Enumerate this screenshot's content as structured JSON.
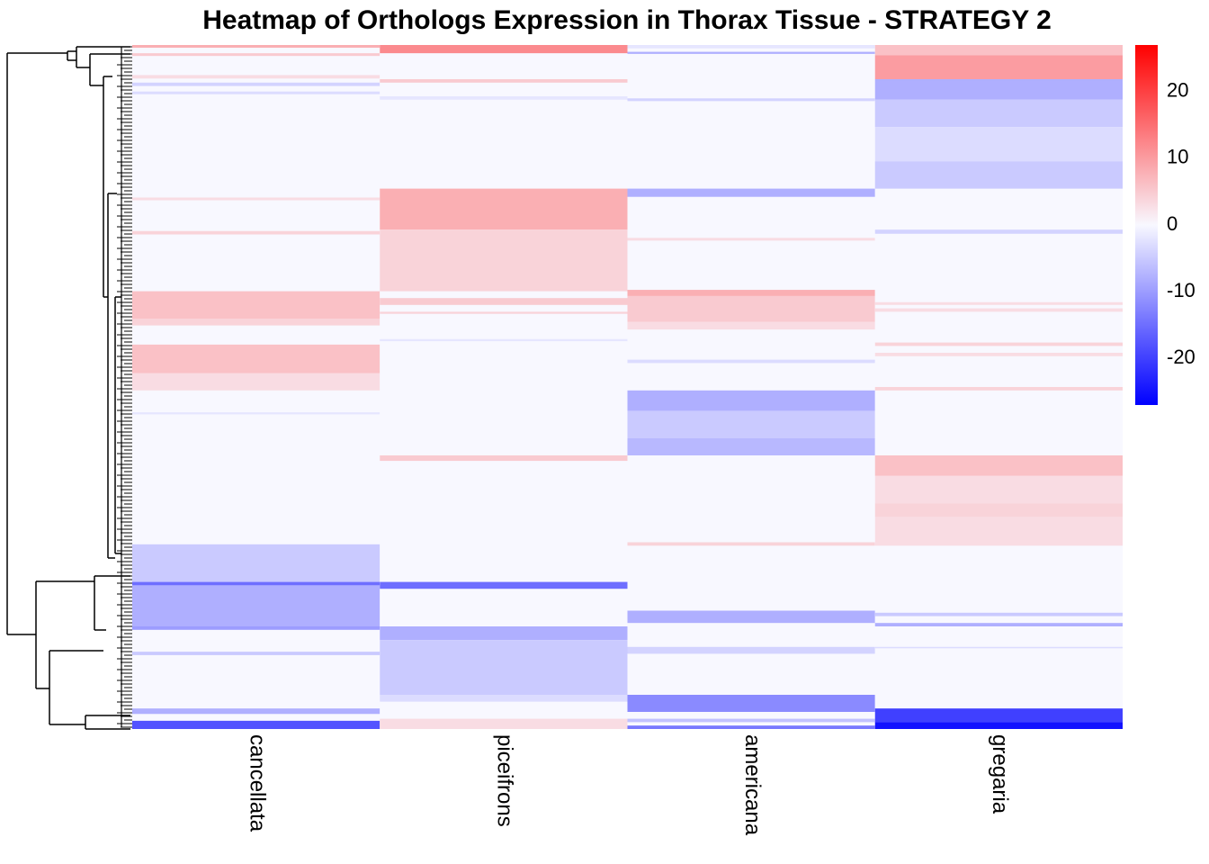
{
  "chart_data": {
    "type": "heatmap",
    "title": "Heatmap of Orthologs Expression in Thorax Tissue - STRATEGY 2",
    "columns": [
      "cancellata",
      "piceifrons",
      "americana",
      "gregaria"
    ],
    "color_scale": {
      "min": -27,
      "max": 27,
      "low_color": "#0000ff",
      "mid_color": "#f8f8ff",
      "high_color": "#ff0000",
      "ticks": [
        20,
        10,
        0,
        -10,
        -20
      ]
    },
    "row_blocks_note": "values approximated; rows grouped as fractional spans of clustered row order",
    "row_blocks": {
      "cancellata": [
        {
          "from": 0.0,
          "to": 0.004,
          "value": 8
        },
        {
          "from": 0.012,
          "to": 0.016,
          "value": 5
        },
        {
          "from": 0.044,
          "to": 0.049,
          "value": 3
        },
        {
          "from": 0.055,
          "to": 0.06,
          "value": -4
        },
        {
          "from": 0.068,
          "to": 0.072,
          "value": -3
        },
        {
          "from": 0.223,
          "to": 0.227,
          "value": 3
        },
        {
          "from": 0.272,
          "to": 0.277,
          "value": 4
        },
        {
          "from": 0.36,
          "to": 0.4,
          "value": 6
        },
        {
          "from": 0.4,
          "to": 0.41,
          "value": 4
        },
        {
          "from": 0.438,
          "to": 0.48,
          "value": 6
        },
        {
          "from": 0.48,
          "to": 0.505,
          "value": 3
        },
        {
          "from": 0.537,
          "to": 0.54,
          "value": -2
        },
        {
          "from": 0.73,
          "to": 0.785,
          "value": -5
        },
        {
          "from": 0.785,
          "to": 0.79,
          "value": -15
        },
        {
          "from": 0.79,
          "to": 0.85,
          "value": -8
        },
        {
          "from": 0.85,
          "to": 0.855,
          "value": -10
        },
        {
          "from": 0.887,
          "to": 0.892,
          "value": -5
        },
        {
          "from": 0.97,
          "to": 0.978,
          "value": -8
        },
        {
          "from": 0.988,
          "to": 1.0,
          "value": -18
        }
      ],
      "piceifrons": [
        {
          "from": 0.0,
          "to": 0.012,
          "value": 12
        },
        {
          "from": 0.05,
          "to": 0.055,
          "value": 5
        },
        {
          "from": 0.075,
          "to": 0.08,
          "value": -2
        },
        {
          "from": 0.21,
          "to": 0.27,
          "value": 8
        },
        {
          "from": 0.27,
          "to": 0.36,
          "value": 4
        },
        {
          "from": 0.37,
          "to": 0.38,
          "value": 5
        },
        {
          "from": 0.39,
          "to": 0.393,
          "value": 4
        },
        {
          "from": 0.43,
          "to": 0.433,
          "value": -2
        },
        {
          "from": 0.6,
          "to": 0.608,
          "value": 5
        },
        {
          "from": 0.785,
          "to": 0.795,
          "value": -15
        },
        {
          "from": 0.85,
          "to": 0.87,
          "value": -8
        },
        {
          "from": 0.87,
          "to": 0.95,
          "value": -5
        },
        {
          "from": 0.95,
          "to": 0.96,
          "value": -3
        },
        {
          "from": 0.985,
          "to": 1.0,
          "value": 3
        }
      ],
      "americana": [
        {
          "from": 0.0,
          "to": 0.005,
          "value": -2
        },
        {
          "from": 0.01,
          "to": 0.013,
          "value": -8
        },
        {
          "from": 0.078,
          "to": 0.082,
          "value": -4
        },
        {
          "from": 0.21,
          "to": 0.222,
          "value": -8
        },
        {
          "from": 0.282,
          "to": 0.286,
          "value": 3
        },
        {
          "from": 0.358,
          "to": 0.367,
          "value": 8
        },
        {
          "from": 0.367,
          "to": 0.405,
          "value": 5
        },
        {
          "from": 0.405,
          "to": 0.416,
          "value": 3
        },
        {
          "from": 0.46,
          "to": 0.465,
          "value": -3
        },
        {
          "from": 0.505,
          "to": 0.535,
          "value": -8
        },
        {
          "from": 0.535,
          "to": 0.575,
          "value": -5
        },
        {
          "from": 0.575,
          "to": 0.6,
          "value": -7
        },
        {
          "from": 0.727,
          "to": 0.732,
          "value": 4
        },
        {
          "from": 0.827,
          "to": 0.845,
          "value": -8
        },
        {
          "from": 0.88,
          "to": 0.89,
          "value": -4
        },
        {
          "from": 0.95,
          "to": 0.975,
          "value": -12
        },
        {
          "from": 0.985,
          "to": 0.99,
          "value": -6
        },
        {
          "from": 0.995,
          "to": 1.0,
          "value": -14
        }
      ],
      "gregaria": [
        {
          "from": 0.0,
          "to": 0.015,
          "value": 6
        },
        {
          "from": 0.015,
          "to": 0.05,
          "value": 10
        },
        {
          "from": 0.05,
          "to": 0.08,
          "value": -8
        },
        {
          "from": 0.08,
          "to": 0.12,
          "value": -5
        },
        {
          "from": 0.12,
          "to": 0.17,
          "value": -3
        },
        {
          "from": 0.17,
          "to": 0.21,
          "value": -5
        },
        {
          "from": 0.27,
          "to": 0.276,
          "value": -4
        },
        {
          "from": 0.376,
          "to": 0.38,
          "value": 3
        },
        {
          "from": 0.385,
          "to": 0.39,
          "value": 3
        },
        {
          "from": 0.435,
          "to": 0.44,
          "value": 4
        },
        {
          "from": 0.45,
          "to": 0.455,
          "value": 3
        },
        {
          "from": 0.5,
          "to": 0.505,
          "value": 4
        },
        {
          "from": 0.6,
          "to": 0.63,
          "value": 6
        },
        {
          "from": 0.63,
          "to": 0.67,
          "value": 3
        },
        {
          "from": 0.67,
          "to": 0.69,
          "value": 4
        },
        {
          "from": 0.69,
          "to": 0.732,
          "value": 3
        },
        {
          "from": 0.83,
          "to": 0.835,
          "value": -5
        },
        {
          "from": 0.845,
          "to": 0.85,
          "value": -8
        },
        {
          "from": 0.88,
          "to": 0.882,
          "value": -3
        },
        {
          "from": 0.97,
          "to": 0.99,
          "value": -20
        },
        {
          "from": 0.99,
          "to": 1.0,
          "value": -25
        }
      ]
    }
  }
}
